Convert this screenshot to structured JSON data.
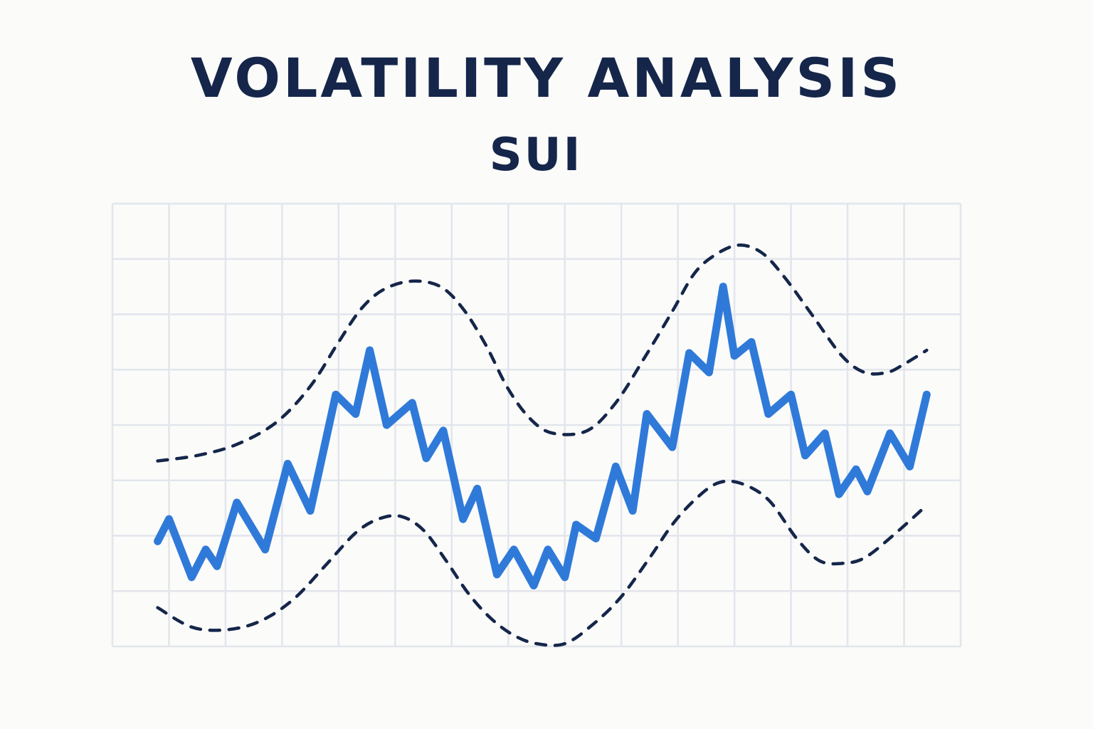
{
  "chart_data": {
    "type": "line",
    "title": "VOLATILITY ANALYSIS",
    "subtitle": "SUI",
    "xlabel": "",
    "ylabel": "",
    "grid": true,
    "ylim": [
      0,
      8
    ],
    "xlim": [
      0,
      15
    ],
    "colors": {
      "price": "#2f7ad9",
      "band": "#15264a",
      "grid": "#e2e5ec"
    },
    "series": [
      {
        "x": [
          0.8,
          1.0,
          1.4,
          1.65,
          1.85,
          2.2,
          2.7,
          3.1,
          3.5,
          3.95,
          4.3,
          4.55,
          4.85,
          5.3,
          5.55,
          5.85,
          6.2,
          6.45,
          6.8,
          7.1,
          7.45,
          7.7,
          8.0,
          8.2,
          8.55,
          8.9,
          9.2,
          9.45,
          9.9,
          10.2,
          10.55,
          10.8,
          11.0,
          11.3,
          11.6,
          12.0,
          12.25,
          12.6,
          12.85,
          13.15,
          13.35,
          13.75,
          14.1,
          14.4
        ],
        "y": [
          1.9,
          2.3,
          1.25,
          1.75,
          1.45,
          2.6,
          1.75,
          3.3,
          2.45,
          4.55,
          4.2,
          5.35,
          4.0,
          4.4,
          3.4,
          3.9,
          2.3,
          2.85,
          1.3,
          1.75,
          1.1,
          1.75,
          1.25,
          2.2,
          1.95,
          3.25,
          2.45,
          4.2,
          3.6,
          5.3,
          4.95,
          6.5,
          5.25,
          5.5,
          4.2,
          4.55,
          3.45,
          3.85,
          2.75,
          3.2,
          2.8,
          3.85,
          3.25,
          4.55
        ]
      },
      {
        "x": [
          0.8,
          1.5,
          2.2,
          2.9,
          3.5,
          4.0,
          4.4,
          4.8,
          5.3,
          5.8,
          6.2,
          6.6,
          7.0,
          7.4,
          7.8,
          8.4,
          8.9,
          9.4,
          9.9,
          10.3,
          10.7,
          11.1,
          11.5,
          11.9,
          12.4,
          12.9,
          13.3,
          13.7,
          14.0,
          14.4
        ],
        "y": [
          3.35,
          3.45,
          3.65,
          4.05,
          4.7,
          5.5,
          6.1,
          6.45,
          6.6,
          6.5,
          6.1,
          5.45,
          4.65,
          4.1,
          3.85,
          3.9,
          4.4,
          5.2,
          6.05,
          6.75,
          7.1,
          7.25,
          7.1,
          6.65,
          5.95,
          5.25,
          4.95,
          4.95,
          5.1,
          5.35
        ]
      },
      {
        "x": [
          0.8,
          1.4,
          2.0,
          2.6,
          3.2,
          3.8,
          4.3,
          4.7,
          5.1,
          5.5,
          5.9,
          6.3,
          6.7,
          7.1,
          7.5,
          8.0,
          8.5,
          9.0,
          9.5,
          9.9,
          10.3,
          10.7,
          11.1,
          11.6,
          12.1,
          12.5,
          12.9,
          13.3,
          13.8,
          14.4
        ],
        "y": [
          0.7,
          0.35,
          0.3,
          0.45,
          0.85,
          1.5,
          2.05,
          2.3,
          2.35,
          2.1,
          1.55,
          0.95,
          0.5,
          0.2,
          0.05,
          0.05,
          0.4,
          0.9,
          1.6,
          2.2,
          2.65,
          2.95,
          2.95,
          2.65,
          1.95,
          1.55,
          1.5,
          1.6,
          2.0,
          2.55
        ]
      }
    ]
  }
}
